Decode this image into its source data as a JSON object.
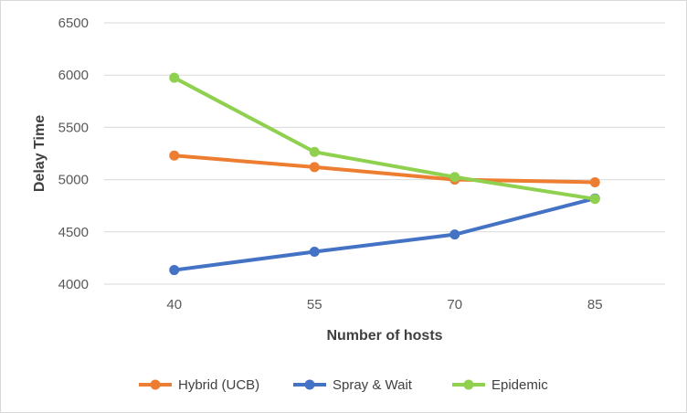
{
  "chart_data": {
    "type": "line",
    "title": "",
    "xlabel": "Number of hosts",
    "ylabel": "Delay Time",
    "categories": [
      "40",
      "55",
      "70",
      "85"
    ],
    "ylim": [
      4000,
      6500
    ],
    "yticks": [
      4000,
      4500,
      5000,
      5500,
      6000,
      6500
    ],
    "grid": true,
    "legend_position": "bottom",
    "series": [
      {
        "name": "Hybrid (UCB)",
        "color": "#ED7D31",
        "values": [
          5230,
          5120,
          5000,
          4975
        ]
      },
      {
        "name": "Spray & Wait",
        "color": "#4472C4",
        "values": [
          4135,
          4310,
          4475,
          4820
        ]
      },
      {
        "name": "Epidemic",
        "color": "#8FD14F",
        "values": [
          5975,
          5265,
          5025,
          4815
        ]
      }
    ]
  }
}
